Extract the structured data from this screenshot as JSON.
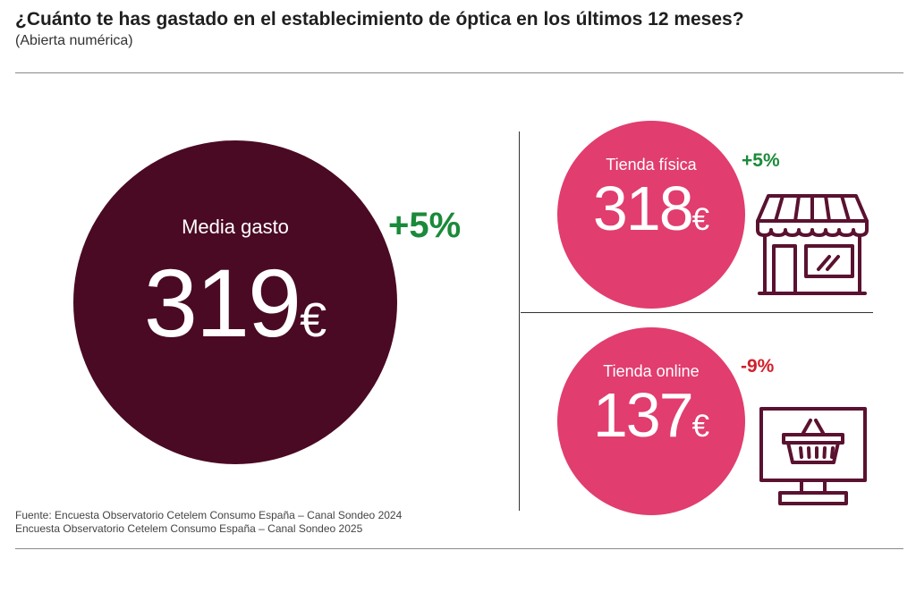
{
  "header": {
    "title": "¿Cuánto te has gastado en el establecimiento de óptica en los últimos 12 meses?",
    "subtitle": "(Abierta numérica)"
  },
  "main": {
    "label": "Media gasto",
    "value": "319",
    "currency": "€",
    "change": "+5%",
    "change_color": "#1b8a3a",
    "circle_color": "#4a0a23"
  },
  "store": {
    "label": "Tienda física",
    "value": "318",
    "currency": "€",
    "change": "+5%",
    "change_color": "#1b8a3a",
    "circle_color": "#e13d6f",
    "icon": "storefront-icon"
  },
  "online": {
    "label": "Tienda online",
    "value": "137",
    "currency": "€",
    "change": "-9%",
    "change_color": "#d0202a",
    "circle_color": "#e13d6f",
    "icon": "monitor-basket-icon"
  },
  "source": {
    "line1": "Fuente: Encuesta Observatorio Cetelem Consumo España – Canal Sondeo 2024",
    "line2": "Encuesta Observatorio Cetelem Consumo España – Canal Sondeo 2025"
  }
}
